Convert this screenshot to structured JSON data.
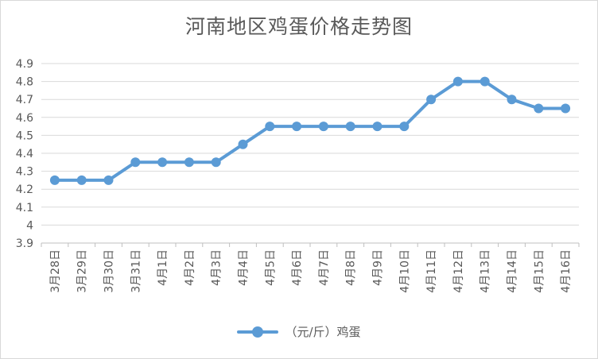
{
  "chart_data": {
    "type": "line",
    "title": "河南地区鸡蛋价格走势图",
    "categories": [
      "3月28日",
      "3月29日",
      "3月30日",
      "3月31日",
      "4月1日",
      "4月2日",
      "4月3日",
      "4月4日",
      "4月5日",
      "4月6日",
      "4月7日",
      "4月8日",
      "4月9日",
      "4月10日",
      "4月11日",
      "4月12日",
      "4月13日",
      "4月14日",
      "4月15日",
      "4月16日"
    ],
    "series": [
      {
        "name": "（元/斤）鸡蛋",
        "color": "#5b9bd5",
        "values": [
          4.25,
          4.25,
          4.25,
          4.35,
          4.35,
          4.35,
          4.35,
          4.45,
          4.55,
          4.55,
          4.55,
          4.55,
          4.55,
          4.55,
          4.7,
          4.8,
          4.8,
          4.7,
          4.65,
          4.65
        ]
      }
    ],
    "ylim": [
      3.9,
      4.9
    ],
    "yticks": [
      "3.9",
      "4",
      "4.1",
      "4.2",
      "4.3",
      "4.4",
      "4.5",
      "4.6",
      "4.7",
      "4.8",
      "4.9"
    ],
    "grid": true,
    "legend_position": "bottom",
    "xlabel": "",
    "ylabel": ""
  }
}
